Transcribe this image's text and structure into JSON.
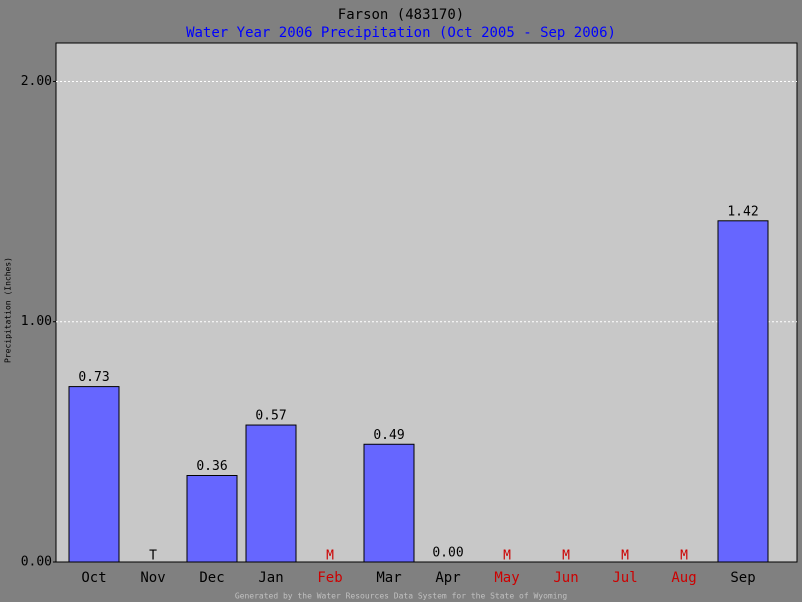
{
  "chart_data": {
    "type": "bar",
    "title": "Farson (483170)",
    "subtitle": "Water Year 2006 Precipitation (Oct 2005 - Sep 2006)",
    "y_label": "Precipitation (Inches)",
    "footer": "Generated by the Water Resources Data System for the State of Wyoming",
    "categories": [
      "Oct",
      "Nov",
      "Dec",
      "Jan",
      "Feb",
      "Mar",
      "Apr",
      "May",
      "Jun",
      "Jul",
      "Aug",
      "Sep"
    ],
    "values": [
      0.73,
      null,
      0.36,
      0.57,
      null,
      0.49,
      0.0,
      null,
      null,
      null,
      null,
      1.42
    ],
    "value_labels": [
      "0.73",
      "T",
      "0.36",
      "0.57",
      "M",
      "0.49",
      "0.00",
      "M",
      "M",
      "M",
      "M",
      "1.42"
    ],
    "category_colors": [
      "#000000",
      "#000000",
      "#000000",
      "#000000",
      "#cc0000",
      "#000000",
      "#000000",
      "#cc0000",
      "#cc0000",
      "#cc0000",
      "#cc0000",
      "#000000"
    ],
    "color": "#6666ff",
    "title_color": "#000000",
    "subtitle_color": "#0000ff",
    "ylim": [
      0,
      2.16
    ],
    "yticks": [
      {
        "value": 0,
        "label": "0.00"
      },
      {
        "value": 1,
        "label": "1.00"
      },
      {
        "value": 2,
        "label": "2.00"
      }
    ],
    "grid": true
  }
}
